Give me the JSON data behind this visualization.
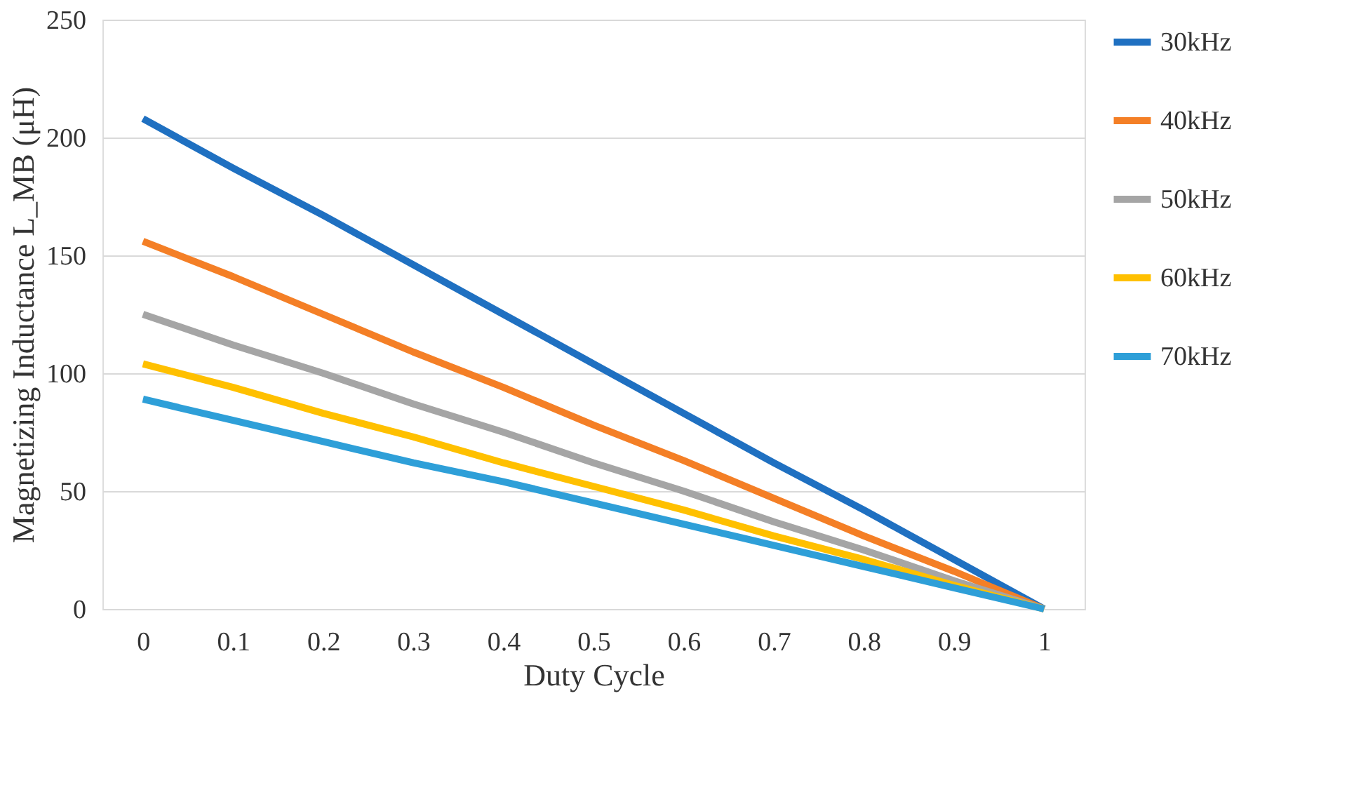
{
  "chart_data": {
    "type": "line",
    "xlabel": "Duty Cycle",
    "ylabel": "Magnetizing Inductance L_MB (μH)",
    "categories": [
      "0",
      "0.1",
      "0.2",
      "0.3",
      "0.4",
      "0.5",
      "0.6",
      "0.7",
      "0.8",
      "0.9",
      "1"
    ],
    "series": [
      {
        "name": "30kHz",
        "color": "#1f70c1",
        "values": [
          208,
          187,
          167,
          146,
          125,
          104,
          83,
          62,
          42,
          21,
          0
        ]
      },
      {
        "name": "40kHz",
        "color": "#f47f26",
        "values": [
          156,
          141,
          125,
          109,
          94,
          78,
          63,
          47,
          31,
          16,
          0
        ]
      },
      {
        "name": "50kHz",
        "color": "#a5a5a5",
        "values": [
          125,
          112,
          100,
          87,
          75,
          62,
          50,
          37,
          25,
          12,
          0
        ]
      },
      {
        "name": "60kHz",
        "color": "#ffc000",
        "values": [
          104,
          94,
          83,
          73,
          62,
          52,
          42,
          31,
          21,
          10,
          0
        ]
      },
      {
        "name": "70kHz",
        "color": "#2e9fd8",
        "values": [
          89,
          80,
          71,
          62,
          54,
          45,
          36,
          27,
          18,
          9,
          0
        ]
      }
    ],
    "ylim": [
      0,
      250
    ],
    "yticks": [
      0,
      50,
      100,
      150,
      200,
      250
    ],
    "grid": "y",
    "legend": "top right",
    "marker": "none",
    "line_style": "solid"
  }
}
